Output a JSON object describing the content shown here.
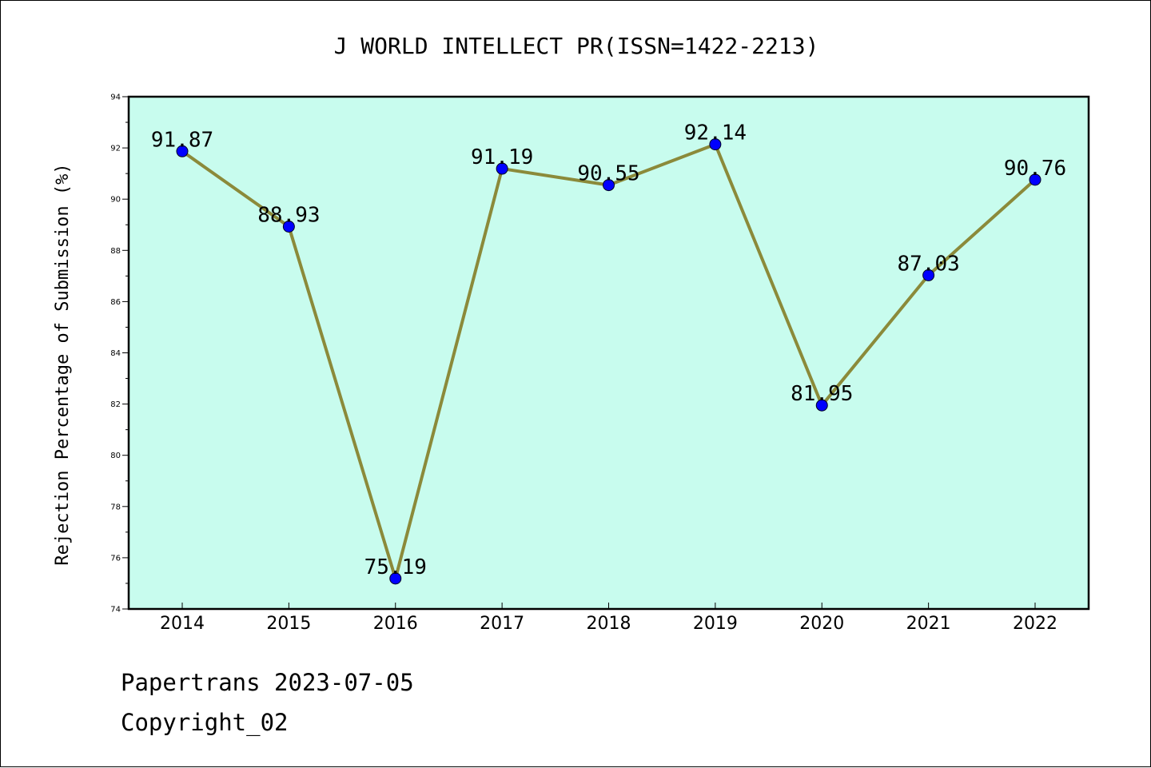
{
  "chart_data": {
    "type": "line",
    "title": "J WORLD INTELLECT PR(ISSN=1422-2213)",
    "xlabel": "",
    "ylabel": "Rejection Percentage of Submission (%)",
    "categories": [
      "2014",
      "2015",
      "2016",
      "2017",
      "2018",
      "2019",
      "2020",
      "2021",
      "2022"
    ],
    "values": [
      91.87,
      88.93,
      75.19,
      91.19,
      90.55,
      92.14,
      81.95,
      87.03,
      90.76
    ],
    "labels": [
      "91.87",
      "88.93",
      "75.19",
      "91.19",
      "90.55",
      "92.14",
      "81.95",
      "87.03",
      "90.76"
    ],
    "ylim": [
      74,
      94
    ],
    "yticks": [
      "74",
      "76",
      "78",
      "80",
      "82",
      "84",
      "86",
      "88",
      "90",
      "92",
      "94"
    ],
    "grid": false,
    "colors": {
      "plot_background": "#c8fcee",
      "line": "#8b8a3a",
      "marker": "#0000ff"
    }
  },
  "footer": {
    "line1": "Papertrans 2023-07-05",
    "line2": "Copyright_02"
  }
}
